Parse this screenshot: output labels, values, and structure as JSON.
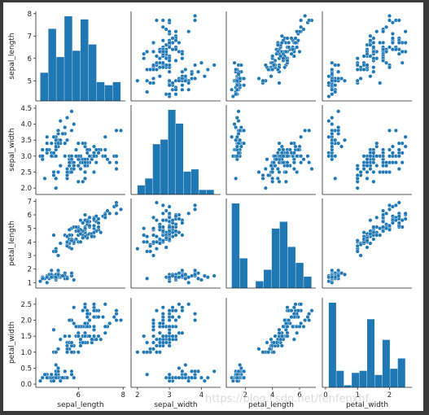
{
  "watermark": "https://blog.csdn.net/fenfenxhf",
  "colors": {
    "marker": "#1f77b4",
    "background": "#ffffff",
    "frame": "#3a3a3a"
  },
  "chart_data": {
    "type": "scatter",
    "description_of_grid": "pairplot",
    "variables": [
      "sepal_length",
      "sepal_width",
      "petal_length",
      "petal_width"
    ],
    "ranges": {
      "sepal_length": [
        4.1,
        8.1
      ],
      "sepal_width": [
        1.8,
        4.6
      ],
      "petal_length": [
        0.6,
        7.2
      ],
      "petal_width": [
        -0.1,
        2.7
      ]
    },
    "ticks": {
      "sepal_length": [
        5,
        6,
        7,
        8
      ],
      "sepal_width": [
        2.0,
        2.5,
        3.0,
        3.5,
        4.0,
        4.5
      ],
      "petal_length": [
        1,
        2,
        3,
        4,
        5,
        6,
        7
      ],
      "petal_width": [
        0.0,
        0.5,
        1.0,
        1.5,
        2.0,
        2.5
      ]
    },
    "x_ticks": {
      "sepal_length": [
        6,
        8
      ],
      "sepal_width": [
        2,
        3,
        4
      ],
      "petal_length": [
        2,
        4,
        6
      ],
      "petal_width": [
        0,
        1,
        2
      ]
    },
    "histograms": {
      "sepal_length": {
        "edges": [
          4.3,
          4.66,
          5.02,
          5.38,
          5.74,
          6.1,
          6.46,
          6.82,
          7.18,
          7.54,
          7.9
        ],
        "counts": [
          9,
          23,
          14,
          27,
          16,
          26,
          18,
          6,
          5,
          6
        ]
      },
      "sepal_width": {
        "edges": [
          2.0,
          2.24,
          2.48,
          2.72,
          2.96,
          3.2,
          3.44,
          3.68,
          3.92,
          4.16,
          4.4
        ],
        "counts": [
          4,
          7,
          22,
          24,
          37,
          31,
          10,
          11,
          2,
          2
        ]
      },
      "petal_length": {
        "edges": [
          1.0,
          1.59,
          2.18,
          2.77,
          3.36,
          3.95,
          4.54,
          5.13,
          5.72,
          6.31,
          6.9
        ],
        "counts": [
          37,
          13,
          0,
          3,
          8,
          26,
          29,
          18,
          11,
          5
        ]
      },
      "petal_width": {
        "edges": [
          0.1,
          0.34,
          0.58,
          0.82,
          1.06,
          1.3,
          1.54,
          1.78,
          2.02,
          2.26,
          2.5
        ],
        "counts": [
          41,
          8,
          1,
          7,
          8,
          33,
          6,
          23,
          9,
          14
        ]
      }
    },
    "points": [
      [
        5.1,
        3.5,
        1.4,
        0.2
      ],
      [
        4.9,
        3.0,
        1.4,
        0.2
      ],
      [
        4.7,
        3.2,
        1.3,
        0.2
      ],
      [
        4.6,
        3.1,
        1.5,
        0.2
      ],
      [
        5.0,
        3.6,
        1.4,
        0.2
      ],
      [
        5.4,
        3.9,
        1.7,
        0.4
      ],
      [
        4.6,
        3.4,
        1.4,
        0.3
      ],
      [
        5.0,
        3.4,
        1.5,
        0.2
      ],
      [
        4.4,
        2.9,
        1.4,
        0.2
      ],
      [
        4.9,
        3.1,
        1.5,
        0.1
      ],
      [
        5.4,
        3.7,
        1.5,
        0.2
      ],
      [
        4.8,
        3.4,
        1.6,
        0.2
      ],
      [
        4.8,
        3.0,
        1.4,
        0.1
      ],
      [
        4.3,
        3.0,
        1.1,
        0.1
      ],
      [
        5.8,
        4.0,
        1.2,
        0.2
      ],
      [
        5.7,
        4.4,
        1.5,
        0.4
      ],
      [
        5.4,
        3.9,
        1.3,
        0.4
      ],
      [
        5.1,
        3.5,
        1.4,
        0.3
      ],
      [
        5.7,
        3.8,
        1.7,
        0.3
      ],
      [
        5.1,
        3.8,
        1.5,
        0.3
      ],
      [
        5.4,
        3.4,
        1.7,
        0.2
      ],
      [
        5.1,
        3.7,
        1.5,
        0.4
      ],
      [
        4.6,
        3.6,
        1.0,
        0.2
      ],
      [
        5.1,
        3.3,
        1.7,
        0.5
      ],
      [
        4.8,
        3.4,
        1.9,
        0.2
      ],
      [
        5.0,
        3.0,
        1.6,
        0.2
      ],
      [
        5.0,
        3.4,
        1.6,
        0.4
      ],
      [
        5.2,
        3.5,
        1.5,
        0.2
      ],
      [
        5.2,
        3.4,
        1.4,
        0.2
      ],
      [
        4.7,
        3.2,
        1.6,
        0.2
      ],
      [
        4.8,
        3.1,
        1.6,
        0.2
      ],
      [
        5.4,
        3.4,
        1.5,
        0.4
      ],
      [
        5.2,
        4.1,
        1.5,
        0.1
      ],
      [
        5.5,
        4.2,
        1.4,
        0.2
      ],
      [
        4.9,
        3.1,
        1.5,
        0.2
      ],
      [
        5.0,
        3.2,
        1.2,
        0.2
      ],
      [
        5.5,
        3.5,
        1.3,
        0.2
      ],
      [
        4.9,
        3.6,
        1.4,
        0.1
      ],
      [
        4.4,
        3.0,
        1.3,
        0.2
      ],
      [
        5.1,
        3.4,
        1.5,
        0.2
      ],
      [
        5.0,
        3.5,
        1.3,
        0.3
      ],
      [
        4.5,
        2.3,
        1.3,
        0.3
      ],
      [
        4.4,
        3.2,
        1.3,
        0.2
      ],
      [
        5.0,
        3.5,
        1.6,
        0.6
      ],
      [
        5.1,
        3.8,
        1.9,
        0.4
      ],
      [
        4.8,
        3.0,
        1.4,
        0.3
      ],
      [
        5.1,
        3.8,
        1.6,
        0.2
      ],
      [
        4.6,
        3.2,
        1.4,
        0.2
      ],
      [
        5.3,
        3.7,
        1.5,
        0.2
      ],
      [
        5.0,
        3.3,
        1.4,
        0.2
      ],
      [
        7.0,
        3.2,
        4.7,
        1.4
      ],
      [
        6.4,
        3.2,
        4.5,
        1.5
      ],
      [
        6.9,
        3.1,
        4.9,
        1.5
      ],
      [
        5.5,
        2.3,
        4.0,
        1.3
      ],
      [
        6.5,
        2.8,
        4.6,
        1.5
      ],
      [
        5.7,
        2.8,
        4.5,
        1.3
      ],
      [
        6.3,
        3.3,
        4.7,
        1.6
      ],
      [
        4.9,
        2.4,
        3.3,
        1.0
      ],
      [
        6.6,
        2.9,
        4.6,
        1.3
      ],
      [
        5.2,
        2.7,
        3.9,
        1.4
      ],
      [
        5.0,
        2.0,
        3.5,
        1.0
      ],
      [
        5.9,
        3.0,
        4.2,
        1.5
      ],
      [
        6.0,
        2.2,
        4.0,
        1.0
      ],
      [
        6.1,
        2.9,
        4.7,
        1.4
      ],
      [
        5.6,
        2.9,
        3.6,
        1.3
      ],
      [
        6.7,
        3.1,
        4.4,
        1.4
      ],
      [
        5.6,
        3.0,
        4.5,
        1.5
      ],
      [
        5.8,
        2.7,
        4.1,
        1.0
      ],
      [
        6.2,
        2.2,
        4.5,
        1.5
      ],
      [
        5.6,
        2.5,
        3.9,
        1.1
      ],
      [
        5.9,
        3.2,
        4.8,
        1.8
      ],
      [
        6.1,
        2.8,
        4.0,
        1.3
      ],
      [
        6.3,
        2.5,
        4.9,
        1.5
      ],
      [
        6.1,
        2.8,
        4.7,
        1.2
      ],
      [
        6.4,
        2.9,
        4.3,
        1.3
      ],
      [
        6.6,
        3.0,
        4.4,
        1.4
      ],
      [
        6.8,
        2.8,
        4.8,
        1.4
      ],
      [
        6.7,
        3.0,
        5.0,
        1.7
      ],
      [
        6.0,
        2.9,
        4.5,
        1.5
      ],
      [
        5.7,
        2.6,
        3.5,
        1.0
      ],
      [
        5.5,
        2.4,
        3.8,
        1.1
      ],
      [
        5.5,
        2.4,
        3.7,
        1.0
      ],
      [
        5.8,
        2.7,
        3.9,
        1.2
      ],
      [
        6.0,
        2.7,
        5.1,
        1.6
      ],
      [
        5.4,
        3.0,
        4.5,
        1.5
      ],
      [
        6.0,
        3.4,
        4.5,
        1.6
      ],
      [
        6.7,
        3.1,
        4.7,
        1.5
      ],
      [
        6.3,
        2.3,
        4.4,
        1.3
      ],
      [
        5.6,
        3.0,
        4.1,
        1.3
      ],
      [
        5.5,
        2.5,
        4.0,
        1.3
      ],
      [
        5.5,
        2.6,
        4.4,
        1.2
      ],
      [
        6.1,
        3.0,
        4.6,
        1.4
      ],
      [
        5.8,
        2.6,
        4.0,
        1.2
      ],
      [
        5.0,
        2.3,
        3.3,
        1.0
      ],
      [
        5.6,
        2.7,
        4.2,
        1.3
      ],
      [
        5.7,
        3.0,
        4.2,
        1.2
      ],
      [
        5.7,
        2.9,
        4.2,
        1.3
      ],
      [
        6.2,
        2.9,
        4.3,
        1.3
      ],
      [
        5.1,
        2.5,
        3.0,
        1.1
      ],
      [
        5.7,
        2.8,
        4.1,
        1.3
      ],
      [
        6.3,
        3.3,
        6.0,
        2.5
      ],
      [
        5.8,
        2.7,
        5.1,
        1.9
      ],
      [
        7.1,
        3.0,
        5.9,
        2.1
      ],
      [
        6.3,
        2.9,
        5.6,
        1.8
      ],
      [
        6.5,
        3.0,
        5.8,
        2.2
      ],
      [
        7.6,
        3.0,
        6.6,
        2.1
      ],
      [
        4.9,
        2.5,
        4.5,
        1.7
      ],
      [
        7.3,
        2.9,
        6.3,
        1.8
      ],
      [
        6.7,
        2.5,
        5.8,
        1.8
      ],
      [
        7.2,
        3.6,
        6.1,
        2.5
      ],
      [
        6.5,
        3.2,
        5.1,
        2.0
      ],
      [
        6.4,
        2.7,
        5.3,
        1.9
      ],
      [
        6.8,
        3.0,
        5.5,
        2.1
      ],
      [
        5.7,
        2.5,
        5.0,
        2.0
      ],
      [
        5.8,
        2.8,
        5.1,
        2.4
      ],
      [
        6.4,
        3.2,
        5.3,
        2.3
      ],
      [
        6.5,
        3.0,
        5.5,
        1.8
      ],
      [
        7.7,
        3.8,
        6.7,
        2.2
      ],
      [
        7.7,
        2.6,
        6.9,
        2.3
      ],
      [
        6.0,
        2.2,
        5.0,
        1.5
      ],
      [
        6.9,
        3.2,
        5.7,
        2.3
      ],
      [
        5.6,
        2.8,
        4.9,
        2.0
      ],
      [
        7.7,
        2.8,
        6.7,
        2.0
      ],
      [
        6.3,
        2.7,
        4.9,
        1.8
      ],
      [
        6.7,
        3.3,
        5.7,
        2.1
      ],
      [
        7.2,
        3.2,
        6.0,
        1.8
      ],
      [
        6.2,
        2.8,
        4.8,
        1.8
      ],
      [
        6.1,
        3.0,
        4.9,
        1.8
      ],
      [
        6.4,
        2.8,
        5.6,
        2.1
      ],
      [
        7.2,
        3.0,
        5.8,
        1.6
      ],
      [
        7.4,
        2.8,
        6.1,
        1.9
      ],
      [
        7.9,
        3.8,
        6.4,
        2.0
      ],
      [
        6.4,
        2.8,
        5.6,
        2.2
      ],
      [
        6.3,
        2.8,
        5.1,
        1.5
      ],
      [
        6.1,
        2.6,
        5.6,
        1.4
      ],
      [
        7.7,
        3.0,
        6.1,
        2.3
      ],
      [
        6.3,
        3.4,
        5.6,
        2.4
      ],
      [
        6.4,
        3.1,
        5.5,
        1.8
      ],
      [
        6.0,
        3.0,
        4.8,
        1.8
      ],
      [
        6.9,
        3.1,
        5.4,
        2.1
      ],
      [
        6.7,
        3.1,
        5.6,
        2.4
      ],
      [
        6.9,
        3.1,
        5.1,
        2.3
      ],
      [
        5.8,
        2.7,
        5.1,
        1.9
      ],
      [
        6.8,
        3.2,
        5.9,
        2.3
      ],
      [
        6.7,
        3.3,
        5.7,
        2.5
      ],
      [
        6.7,
        3.0,
        5.2,
        2.3
      ],
      [
        6.3,
        2.5,
        5.0,
        1.9
      ],
      [
        6.5,
        3.0,
        5.2,
        2.0
      ],
      [
        6.2,
        3.4,
        5.4,
        2.3
      ],
      [
        5.9,
        3.0,
        5.1,
        1.8
      ]
    ]
  }
}
